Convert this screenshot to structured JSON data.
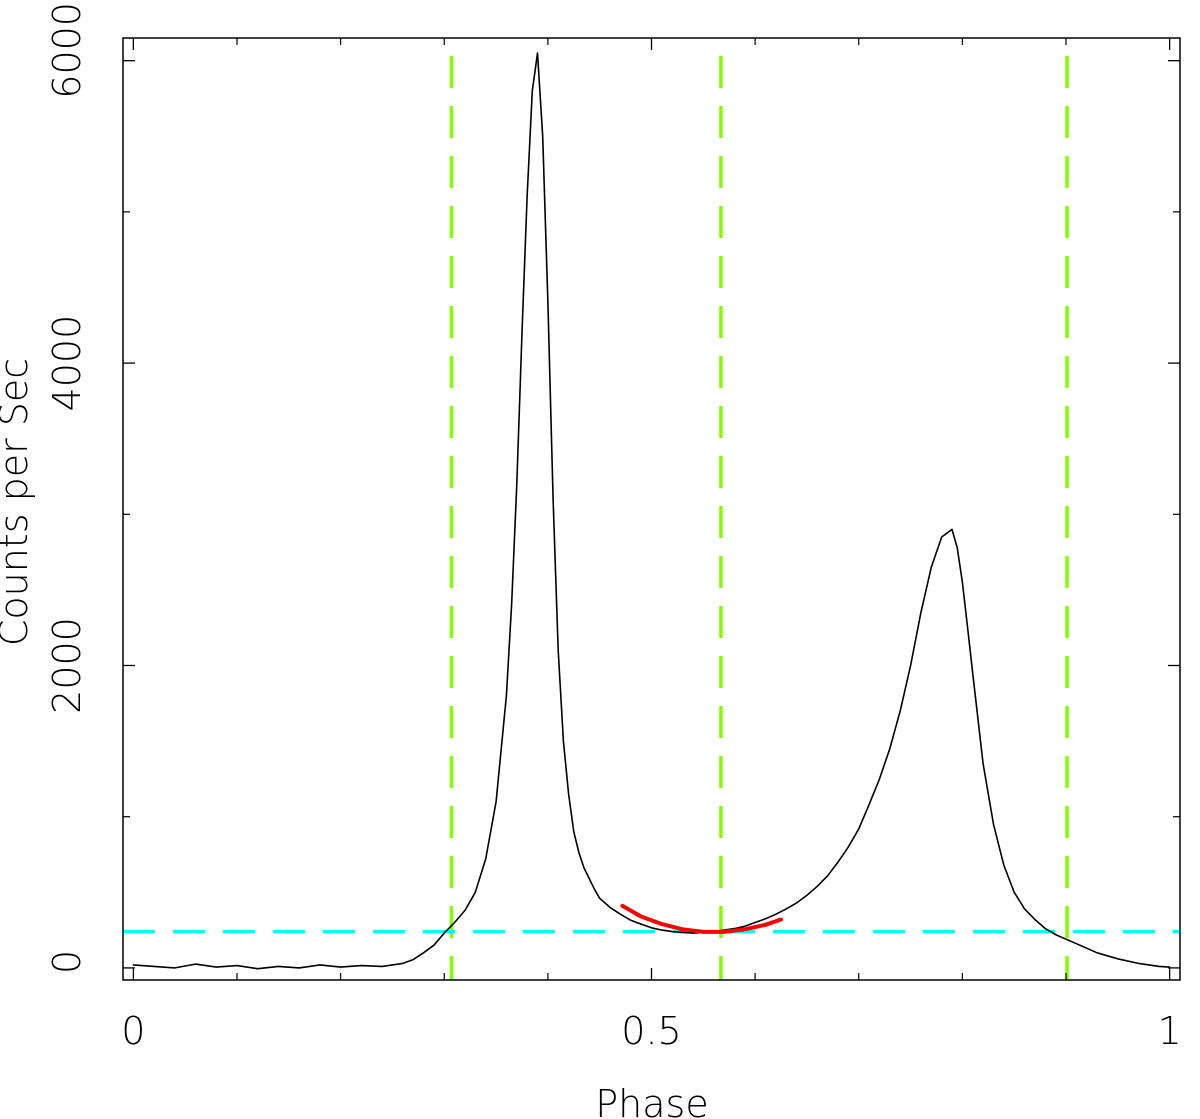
{
  "chart_data": {
    "type": "line",
    "title": "",
    "xlabel": "Phase",
    "ylabel": "Counts per Sec",
    "xlim": [
      -0.01,
      1.01
    ],
    "ylim": [
      -80,
      6150
    ],
    "x_ticks": [
      {
        "value": 0,
        "label": "0"
      },
      {
        "value": 0.5,
        "label": "0.5"
      },
      {
        "value": 1,
        "label": "1"
      }
    ],
    "y_ticks": [
      {
        "value": 0,
        "label": "0"
      },
      {
        "value": 2000,
        "label": "2000"
      },
      {
        "value": 4000,
        "label": "4000"
      },
      {
        "value": 6000,
        "label": "6000"
      }
    ],
    "x_minor_ticks": [
      0.1,
      0.2,
      0.3,
      0.4,
      0.6,
      0.7,
      0.8,
      0.9
    ],
    "y_minor_ticks": [
      1000,
      3000,
      5000
    ],
    "grid": false,
    "series": [
      {
        "color": "#000000",
        "style": "solid",
        "x": [
          0.0,
          0.02,
          0.04,
          0.06,
          0.08,
          0.1,
          0.12,
          0.14,
          0.16,
          0.18,
          0.2,
          0.22,
          0.24,
          0.26,
          0.27,
          0.28,
          0.29,
          0.3,
          0.31,
          0.32,
          0.33,
          0.34,
          0.35,
          0.36,
          0.365,
          0.37,
          0.375,
          0.38,
          0.385,
          0.39,
          0.395,
          0.4,
          0.405,
          0.41,
          0.415,
          0.42,
          0.425,
          0.43,
          0.435,
          0.44,
          0.445,
          0.45,
          0.46,
          0.47,
          0.48,
          0.49,
          0.5,
          0.51,
          0.52,
          0.53,
          0.54,
          0.55,
          0.56,
          0.57,
          0.58,
          0.59,
          0.6,
          0.61,
          0.62,
          0.63,
          0.64,
          0.65,
          0.66,
          0.67,
          0.68,
          0.69,
          0.7,
          0.71,
          0.72,
          0.73,
          0.74,
          0.75,
          0.76,
          0.77,
          0.78,
          0.79,
          0.795,
          0.8,
          0.805,
          0.81,
          0.815,
          0.82,
          0.83,
          0.84,
          0.85,
          0.86,
          0.87,
          0.88,
          0.89,
          0.9,
          0.91,
          0.92,
          0.93,
          0.94,
          0.95,
          0.96,
          0.97,
          0.98,
          0.99,
          1.0
        ],
        "values": [
          20,
          10,
          0,
          25,
          5,
          15,
          -5,
          10,
          0,
          20,
          5,
          15,
          10,
          30,
          55,
          100,
          150,
          230,
          300,
          380,
          500,
          720,
          1100,
          1800,
          2400,
          3200,
          4200,
          5100,
          5800,
          6050,
          5500,
          4400,
          3100,
          2100,
          1500,
          1150,
          900,
          760,
          660,
          590,
          520,
          460,
          400,
          355,
          315,
          290,
          265,
          250,
          240,
          235,
          230,
          235,
          240,
          250,
          260,
          275,
          300,
          325,
          355,
          390,
          430,
          480,
          540,
          610,
          700,
          800,
          920,
          1080,
          1250,
          1450,
          1700,
          2000,
          2350,
          2650,
          2850,
          2900,
          2780,
          2550,
          2250,
          1950,
          1650,
          1350,
          950,
          680,
          500,
          390,
          320,
          260,
          220,
          190,
          160,
          130,
          100,
          80,
          60,
          45,
          30,
          20,
          10,
          5
        ]
      },
      {
        "color": "#ff0000",
        "style": "solid",
        "x": [
          0.472,
          0.49,
          0.51,
          0.53,
          0.55,
          0.57,
          0.59,
          0.61,
          0.625
        ],
        "values": [
          410,
          340,
          290,
          255,
          238,
          238,
          255,
          285,
          320
        ]
      }
    ],
    "reference_lines": [
      {
        "orientation": "vertical",
        "value": 0.307,
        "color": "#7fff00",
        "style": "dashed"
      },
      {
        "orientation": "vertical",
        "value": 0.567,
        "color": "#7fff00",
        "style": "dashed"
      },
      {
        "orientation": "vertical",
        "value": 0.901,
        "color": "#7fff00",
        "style": "dashed"
      },
      {
        "orientation": "horizontal",
        "value": 240,
        "color": "#00ffff",
        "style": "dashed"
      }
    ]
  }
}
